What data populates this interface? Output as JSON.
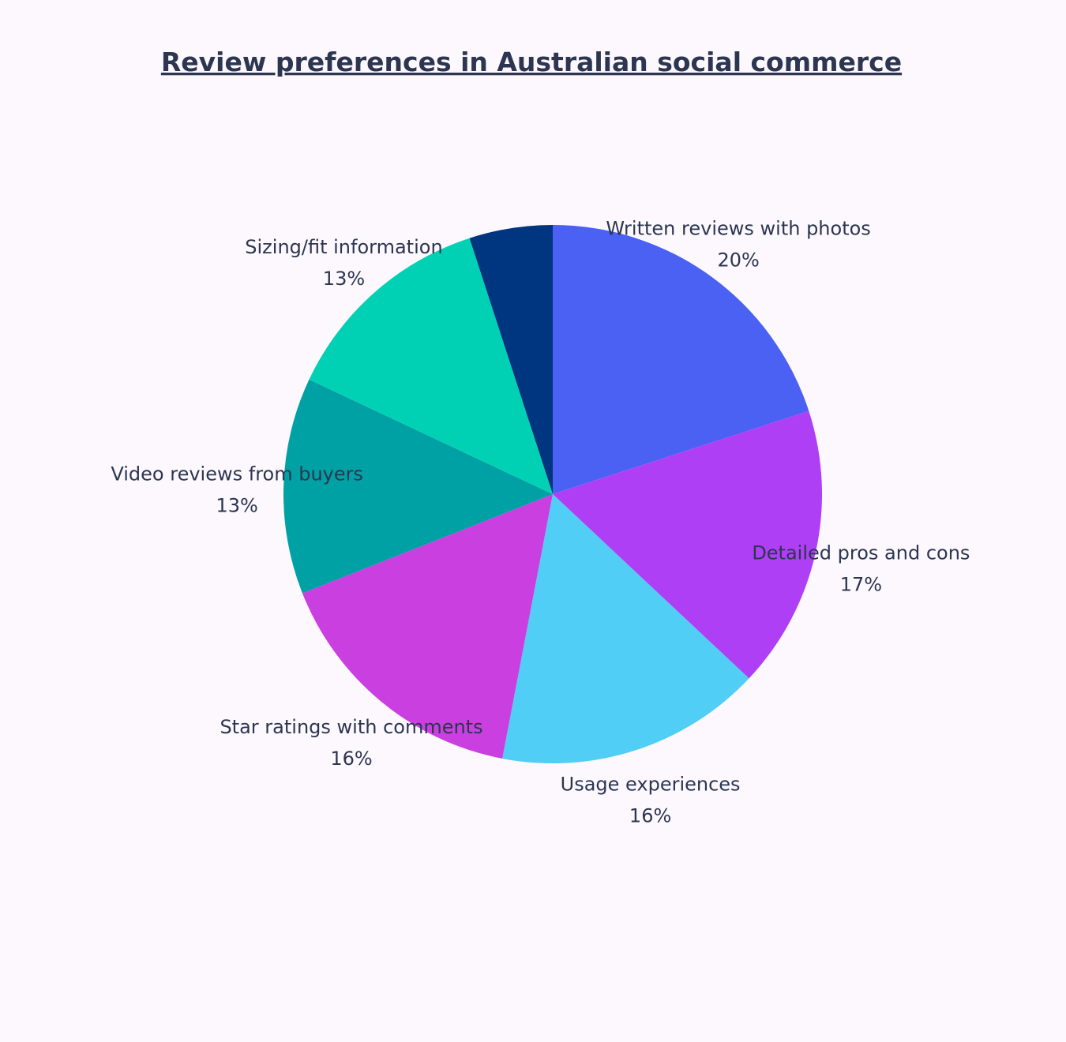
{
  "chart_data": {
    "type": "pie",
    "title": "Review preferences in Australian social commerce",
    "slices": [
      {
        "label": "Written reviews with photos",
        "value": 20,
        "value_label": "20%",
        "color": "#4a61f3"
      },
      {
        "label": "Detailed pros and cons",
        "value": 17,
        "value_label": "17%",
        "color": "#ae3ff5"
      },
      {
        "label": "Usage experiences",
        "value": 16,
        "value_label": "16%",
        "color": "#50cef6"
      },
      {
        "label": "Star ratings with comments",
        "value": 16,
        "value_label": "16%",
        "color": "#ca3fdf"
      },
      {
        "label": "Video reviews from buyers",
        "value": 13,
        "value_label": "13%",
        "color": "#00a1a4"
      },
      {
        "label": "Sizing/fit information",
        "value": 13,
        "value_label": "13%",
        "color": "#00d1b4"
      },
      {
        "label": "",
        "value": 5,
        "value_label": "",
        "color": "#00357f"
      }
    ],
    "start_angle": "12 o'clock",
    "direction": "clockwise",
    "legend": "none"
  }
}
